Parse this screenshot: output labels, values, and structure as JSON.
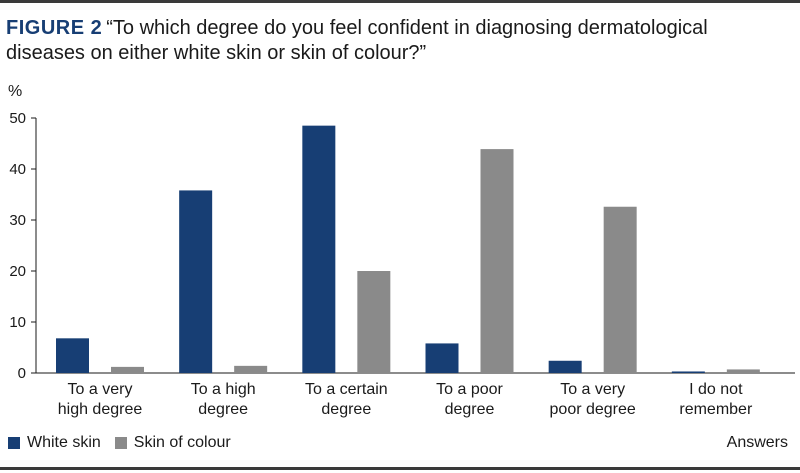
{
  "figure": {
    "label": "FIGURE 2",
    "title": "“To which degree do you feel confident in diagnosing dermatological diseases on either white skin or skin of colour?”"
  },
  "chart_data": {
    "type": "bar",
    "ylabel": "%",
    "xlabel": "Answers",
    "ylim": [
      0,
      50
    ],
    "yticks": [
      0,
      10,
      20,
      30,
      40,
      50
    ],
    "categories": [
      [
        "To a very",
        "high degree"
      ],
      [
        "To a high",
        "degree"
      ],
      [
        "To a certain",
        "degree"
      ],
      [
        "To a poor",
        "degree"
      ],
      [
        "To a very",
        "poor degree"
      ],
      [
        "I do not",
        "remember"
      ]
    ],
    "series": [
      {
        "name": "White skin",
        "color": "#173e74",
        "values": [
          6.8,
          35.8,
          48.5,
          5.8,
          2.4,
          0.3
        ]
      },
      {
        "name": "Skin of colour",
        "color": "#8a8a8a",
        "values": [
          1.2,
          1.4,
          20.0,
          43.9,
          32.6,
          0.7
        ]
      }
    ],
    "grid": false,
    "legend_position": "bottom-left"
  }
}
